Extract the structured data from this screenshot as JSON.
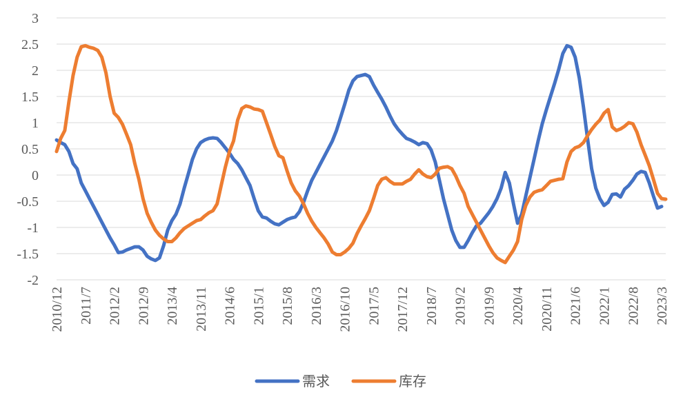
{
  "chart_data": {
    "type": "line",
    "title": "",
    "xlabel": "",
    "ylabel": "",
    "ylim": [
      -2,
      3
    ],
    "yticks": [
      "3",
      "2.5",
      "2",
      "1.5",
      "1",
      "0.5",
      "0",
      "-0.5",
      "-1",
      "-1.5",
      "-2"
    ],
    "ytick_values": [
      3,
      2.5,
      2,
      1.5,
      1,
      0.5,
      0,
      -0.5,
      -1,
      -1.5,
      -2
    ],
    "x_tick_labels": [
      "2010/12",
      "2011/7",
      "2012/2",
      "2012/9",
      "2013/4",
      "2013/11",
      "2014/6",
      "2015/1",
      "2015/8",
      "2016/3",
      "2016/10",
      "2017/5",
      "2017/12",
      "2018/7",
      "2019/2",
      "2019/9",
      "2020/4",
      "2020/11",
      "2021/6",
      "2022/1",
      "2022/8",
      "2023/3"
    ],
    "x_tick_index": [
      0,
      7,
      14,
      21,
      28,
      35,
      42,
      49,
      56,
      63,
      70,
      77,
      84,
      91,
      98,
      105,
      112,
      119,
      126,
      133,
      140,
      147
    ],
    "grid": true,
    "legend_position": "bottom",
    "series": [
      {
        "name": "需求",
        "color": "#4472C4",
        "points": [
          [
            0,
            0.67
          ],
          [
            1,
            0.62
          ],
          [
            2,
            0.58
          ],
          [
            3,
            0.45
          ],
          [
            4,
            0.22
          ],
          [
            5,
            0.12
          ],
          [
            6,
            -0.15
          ],
          [
            7,
            -0.3
          ],
          [
            8,
            -0.45
          ],
          [
            9,
            -0.6
          ],
          [
            10,
            -0.75
          ],
          [
            11,
            -0.9
          ],
          [
            12,
            -1.05
          ],
          [
            13,
            -1.2
          ],
          [
            14,
            -1.33
          ],
          [
            15,
            -1.48
          ],
          [
            16,
            -1.47
          ],
          [
            17,
            -1.43
          ],
          [
            18,
            -1.4
          ],
          [
            19,
            -1.37
          ],
          [
            20,
            -1.37
          ],
          [
            21,
            -1.43
          ],
          [
            22,
            -1.55
          ],
          [
            23,
            -1.6
          ],
          [
            24,
            -1.63
          ],
          [
            25,
            -1.58
          ],
          [
            26,
            -1.35
          ],
          [
            27,
            -1.05
          ],
          [
            28,
            -0.87
          ],
          [
            29,
            -0.75
          ],
          [
            30,
            -0.55
          ],
          [
            31,
            -0.25
          ],
          [
            32,
            0.02
          ],
          [
            33,
            0.3
          ],
          [
            34,
            0.5
          ],
          [
            35,
            0.62
          ],
          [
            36,
            0.67
          ],
          [
            37,
            0.7
          ],
          [
            38,
            0.71
          ],
          [
            39,
            0.7
          ],
          [
            40,
            0.62
          ],
          [
            41,
            0.52
          ],
          [
            42,
            0.42
          ],
          [
            43,
            0.3
          ],
          [
            44,
            0.22
          ],
          [
            45,
            0.1
          ],
          [
            46,
            -0.05
          ],
          [
            47,
            -0.2
          ],
          [
            48,
            -0.45
          ],
          [
            49,
            -0.68
          ],
          [
            50,
            -0.8
          ],
          [
            51,
            -0.82
          ],
          [
            52,
            -0.88
          ],
          [
            53,
            -0.93
          ],
          [
            54,
            -0.95
          ],
          [
            55,
            -0.9
          ],
          [
            56,
            -0.85
          ],
          [
            57,
            -0.82
          ],
          [
            58,
            -0.8
          ],
          [
            59,
            -0.7
          ],
          [
            60,
            -0.52
          ],
          [
            61,
            -0.3
          ],
          [
            62,
            -0.1
          ],
          [
            63,
            0.05
          ],
          [
            64,
            0.2
          ],
          [
            65,
            0.35
          ],
          [
            66,
            0.5
          ],
          [
            67,
            0.65
          ],
          [
            68,
            0.85
          ],
          [
            69,
            1.1
          ],
          [
            70,
            1.35
          ],
          [
            71,
            1.62
          ],
          [
            72,
            1.8
          ],
          [
            73,
            1.88
          ],
          [
            74,
            1.9
          ],
          [
            75,
            1.92
          ],
          [
            76,
            1.88
          ],
          [
            77,
            1.72
          ],
          [
            78,
            1.58
          ],
          [
            79,
            1.45
          ],
          [
            80,
            1.3
          ],
          [
            81,
            1.13
          ],
          [
            82,
            0.98
          ],
          [
            83,
            0.87
          ],
          [
            84,
            0.78
          ],
          [
            85,
            0.7
          ],
          [
            86,
            0.67
          ],
          [
            87,
            0.63
          ],
          [
            88,
            0.58
          ],
          [
            89,
            0.62
          ],
          [
            90,
            0.6
          ],
          [
            91,
            0.48
          ],
          [
            92,
            0.25
          ],
          [
            93,
            -0.1
          ],
          [
            94,
            -0.45
          ],
          [
            95,
            -0.75
          ],
          [
            96,
            -1.05
          ],
          [
            97,
            -1.25
          ],
          [
            98,
            -1.38
          ],
          [
            99,
            -1.38
          ],
          [
            100,
            -1.25
          ],
          [
            101,
            -1.1
          ],
          [
            102,
            -0.97
          ],
          [
            103,
            -0.92
          ],
          [
            104,
            -0.82
          ],
          [
            105,
            -0.72
          ],
          [
            106,
            -0.6
          ],
          [
            107,
            -0.45
          ],
          [
            108,
            -0.25
          ],
          [
            109,
            0.05
          ],
          [
            110,
            -0.15
          ],
          [
            111,
            -0.55
          ],
          [
            112,
            -0.92
          ],
          [
            113,
            -0.75
          ],
          [
            114,
            -0.4
          ],
          [
            115,
            -0.05
          ],
          [
            116,
            0.3
          ],
          [
            117,
            0.65
          ],
          [
            118,
            0.98
          ],
          [
            119,
            1.25
          ],
          [
            120,
            1.5
          ],
          [
            121,
            1.75
          ],
          [
            122,
            2.02
          ],
          [
            123,
            2.32
          ],
          [
            124,
            2.47
          ],
          [
            125,
            2.44
          ],
          [
            126,
            2.25
          ],
          [
            127,
            1.85
          ],
          [
            128,
            1.3
          ],
          [
            129,
            0.7
          ],
          [
            130,
            0.12
          ],
          [
            131,
            -0.25
          ],
          [
            132,
            -0.45
          ],
          [
            133,
            -0.58
          ],
          [
            134,
            -0.52
          ],
          [
            135,
            -0.37
          ],
          [
            136,
            -0.36
          ],
          [
            137,
            -0.42
          ],
          [
            138,
            -0.27
          ],
          [
            139,
            -0.2
          ],
          [
            140,
            -0.1
          ],
          [
            141,
            0.02
          ],
          [
            142,
            0.07
          ],
          [
            143,
            0.05
          ],
          [
            144,
            -0.15
          ],
          [
            145,
            -0.4
          ],
          [
            146,
            -0.63
          ],
          [
            147,
            -0.6
          ]
        ]
      },
      {
        "name": "库存",
        "color": "#ED7D31",
        "points": [
          [
            0,
            0.45
          ],
          [
            1,
            0.7
          ],
          [
            2,
            0.85
          ],
          [
            3,
            1.4
          ],
          [
            4,
            1.9
          ],
          [
            5,
            2.25
          ],
          [
            6,
            2.45
          ],
          [
            7,
            2.47
          ],
          [
            8,
            2.44
          ],
          [
            9,
            2.42
          ],
          [
            10,
            2.38
          ],
          [
            11,
            2.25
          ],
          [
            12,
            1.95
          ],
          [
            13,
            1.5
          ],
          [
            14,
            1.18
          ],
          [
            15,
            1.1
          ],
          [
            16,
            0.97
          ],
          [
            17,
            0.78
          ],
          [
            18,
            0.58
          ],
          [
            19,
            0.22
          ],
          [
            20,
            -0.08
          ],
          [
            21,
            -0.45
          ],
          [
            22,
            -0.73
          ],
          [
            23,
            -0.9
          ],
          [
            24,
            -1.05
          ],
          [
            25,
            -1.15
          ],
          [
            26,
            -1.22
          ],
          [
            27,
            -1.27
          ],
          [
            28,
            -1.27
          ],
          [
            29,
            -1.2
          ],
          [
            30,
            -1.1
          ],
          [
            31,
            -1.02
          ],
          [
            32,
            -0.97
          ],
          [
            33,
            -0.92
          ],
          [
            34,
            -0.87
          ],
          [
            35,
            -0.85
          ],
          [
            36,
            -0.78
          ],
          [
            37,
            -0.72
          ],
          [
            38,
            -0.68
          ],
          [
            39,
            -0.55
          ],
          [
            40,
            -0.2
          ],
          [
            41,
            0.15
          ],
          [
            42,
            0.45
          ],
          [
            43,
            0.65
          ],
          [
            44,
            1.05
          ],
          [
            45,
            1.27
          ],
          [
            46,
            1.32
          ],
          [
            47,
            1.3
          ],
          [
            48,
            1.26
          ],
          [
            49,
            1.25
          ],
          [
            50,
            1.22
          ],
          [
            51,
            1.0
          ],
          [
            52,
            0.78
          ],
          [
            53,
            0.55
          ],
          [
            54,
            0.37
          ],
          [
            55,
            0.33
          ],
          [
            56,
            0.08
          ],
          [
            57,
            -0.15
          ],
          [
            58,
            -0.3
          ],
          [
            59,
            -0.4
          ],
          [
            60,
            -0.55
          ],
          [
            61,
            -0.73
          ],
          [
            62,
            -0.88
          ],
          [
            63,
            -1.0
          ],
          [
            64,
            -1.1
          ],
          [
            65,
            -1.2
          ],
          [
            66,
            -1.32
          ],
          [
            67,
            -1.47
          ],
          [
            68,
            -1.52
          ],
          [
            69,
            -1.52
          ],
          [
            70,
            -1.47
          ],
          [
            71,
            -1.4
          ],
          [
            72,
            -1.3
          ],
          [
            73,
            -1.12
          ],
          [
            74,
            -0.97
          ],
          [
            75,
            -0.83
          ],
          [
            76,
            -0.68
          ],
          [
            77,
            -0.45
          ],
          [
            78,
            -0.2
          ],
          [
            79,
            -0.08
          ],
          [
            80,
            -0.05
          ],
          [
            81,
            -0.12
          ],
          [
            82,
            -0.17
          ],
          [
            83,
            -0.17
          ],
          [
            84,
            -0.17
          ],
          [
            85,
            -0.12
          ],
          [
            86,
            -0.08
          ],
          [
            87,
            0.02
          ],
          [
            88,
            0.1
          ],
          [
            89,
            0.02
          ],
          [
            90,
            -0.03
          ],
          [
            91,
            -0.05
          ],
          [
            92,
            0.02
          ],
          [
            93,
            0.13
          ],
          [
            94,
            0.15
          ],
          [
            95,
            0.16
          ],
          [
            96,
            0.12
          ],
          [
            97,
            -0.02
          ],
          [
            98,
            -0.2
          ],
          [
            99,
            -0.35
          ],
          [
            100,
            -0.6
          ],
          [
            101,
            -0.75
          ],
          [
            102,
            -0.9
          ],
          [
            103,
            -1.05
          ],
          [
            104,
            -1.2
          ],
          [
            105,
            -1.35
          ],
          [
            106,
            -1.48
          ],
          [
            107,
            -1.58
          ],
          [
            108,
            -1.63
          ],
          [
            109,
            -1.67
          ],
          [
            110,
            -1.55
          ],
          [
            111,
            -1.43
          ],
          [
            112,
            -1.27
          ],
          [
            113,
            -0.85
          ],
          [
            114,
            -0.58
          ],
          [
            115,
            -0.42
          ],
          [
            116,
            -0.33
          ],
          [
            117,
            -0.3
          ],
          [
            118,
            -0.28
          ],
          [
            119,
            -0.2
          ],
          [
            120,
            -0.12
          ],
          [
            121,
            -0.1
          ],
          [
            122,
            -0.08
          ],
          [
            123,
            -0.07
          ],
          [
            124,
            0.25
          ],
          [
            125,
            0.45
          ],
          [
            126,
            0.52
          ],
          [
            127,
            0.55
          ],
          [
            128,
            0.62
          ],
          [
            129,
            0.75
          ],
          [
            130,
            0.87
          ],
          [
            131,
            0.97
          ],
          [
            132,
            1.05
          ],
          [
            133,
            1.18
          ],
          [
            134,
            1.25
          ],
          [
            135,
            0.92
          ],
          [
            136,
            0.85
          ],
          [
            137,
            0.88
          ],
          [
            138,
            0.93
          ],
          [
            139,
            1.0
          ],
          [
            140,
            0.98
          ],
          [
            141,
            0.82
          ],
          [
            142,
            0.58
          ],
          [
            143,
            0.38
          ],
          [
            144,
            0.18
          ],
          [
            145,
            -0.08
          ],
          [
            146,
            -0.35
          ],
          [
            147,
            -0.45
          ],
          [
            148,
            -0.46
          ]
        ]
      }
    ]
  }
}
